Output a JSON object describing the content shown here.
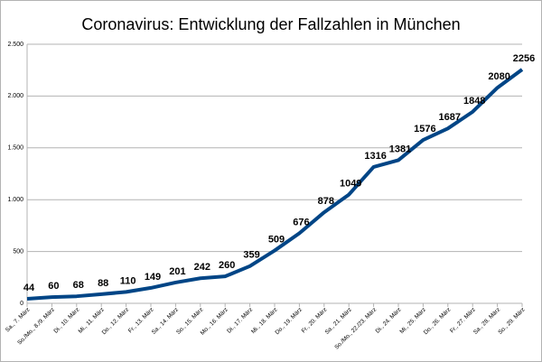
{
  "chart_data": {
    "type": "line",
    "title": "Coronavirus: Entwicklung der Fallzahlen in München",
    "categories": [
      "Sa., 7. März",
      "So./Mo., 8./9. März",
      "Di., 10. März",
      "Mi., 11. März",
      "Do., 12. März",
      "Fr., 13. März",
      "Sa., 14. März",
      "So., 15. März",
      "Mo., 16. März",
      "Di., 17. März",
      "Mi., 18. März",
      "Do., 19. März",
      "Fr., 20. März",
      "Sa., 21. März",
      "So./Mo., 22./23. März",
      "Di., 24. März",
      "Mi., 25. März",
      "Do., 26. März",
      "Fr., 27. März",
      "Sa., 28. März",
      "So., 29. März"
    ],
    "values": [
      44,
      60,
      68,
      88,
      110,
      149,
      201,
      242,
      260,
      359,
      509,
      676,
      878,
      1049,
      1316,
      1381,
      1576,
      1687,
      1848,
      2080,
      2256
    ],
    "color": "#004586",
    "ylim": [
      0,
      2500
    ],
    "yticks": [
      0,
      500,
      {
        "value": 1000,
        "label": "1.000"
      },
      {
        "value": 1500,
        "label": "1.500"
      },
      {
        "value": 2000,
        "label": "2.000"
      },
      {
        "value": 2500,
        "label": "2.500"
      }
    ],
    "grid": true
  }
}
